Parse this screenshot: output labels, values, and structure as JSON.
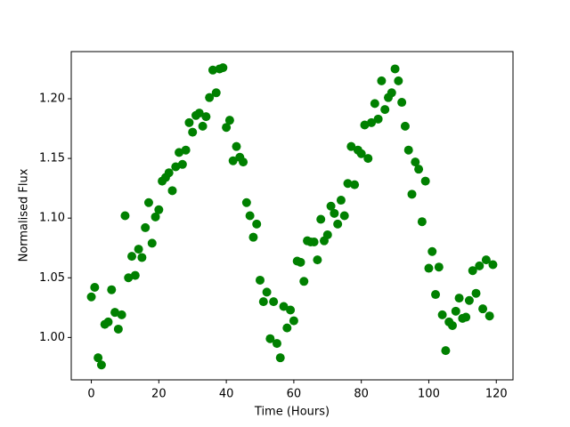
{
  "chart_data": {
    "type": "scatter",
    "xlabel": "Time (Hours)",
    "ylabel": "Normalised Flux",
    "color": "#008000",
    "x": [
      0,
      1,
      2,
      3,
      4,
      5,
      6,
      7,
      8,
      9,
      10,
      11,
      12,
      13,
      14,
      15,
      16,
      17,
      18,
      19,
      20,
      21,
      22,
      23,
      24,
      25,
      26,
      27,
      28,
      29,
      30,
      31,
      32,
      33,
      34,
      35,
      36,
      37,
      38,
      39,
      40,
      41,
      42,
      43,
      44,
      45,
      46,
      47,
      48,
      49,
      50,
      51,
      52,
      53,
      54,
      55,
      56,
      57,
      58,
      59,
      60,
      61,
      62,
      63,
      64,
      65,
      66,
      67,
      68,
      69,
      70,
      71,
      72,
      73,
      74,
      75,
      76,
      77,
      78,
      79,
      80,
      81,
      82,
      83,
      84,
      85,
      86,
      87,
      88,
      89,
      90,
      91,
      92,
      93,
      94,
      95,
      96,
      97,
      98,
      99,
      100,
      101,
      102,
      103,
      104,
      105,
      106,
      107,
      108,
      109,
      110,
      111,
      112,
      113,
      114,
      115,
      116,
      117,
      118,
      119
    ],
    "y": [
      1.034,
      1.042,
      0.983,
      0.977,
      1.011,
      1.013,
      1.04,
      1.021,
      1.007,
      1.019,
      1.102,
      1.05,
      1.068,
      1.052,
      1.074,
      1.067,
      1.092,
      1.113,
      1.079,
      1.101,
      1.107,
      1.131,
      1.134,
      1.138,
      1.123,
      1.143,
      1.155,
      1.145,
      1.157,
      1.18,
      1.172,
      1.186,
      1.188,
      1.177,
      1.185,
      1.201,
      1.224,
      1.205,
      1.225,
      1.226,
      1.176,
      1.182,
      1.148,
      1.16,
      1.151,
      1.147,
      1.113,
      1.102,
      1.084,
      1.095,
      1.048,
      1.03,
      1.038,
      0.999,
      1.03,
      0.995,
      0.983,
      1.026,
      1.008,
      1.023,
      1.014,
      1.064,
      1.063,
      1.047,
      1.081,
      1.08,
      1.08,
      1.065,
      1.099,
      1.081,
      1.086,
      1.11,
      1.104,
      1.095,
      1.115,
      1.102,
      1.129,
      1.16,
      1.128,
      1.157,
      1.154,
      1.178,
      1.15,
      1.18,
      1.196,
      1.183,
      1.215,
      1.191,
      1.201,
      1.205,
      1.225,
      1.215,
      1.197,
      1.177,
      1.157,
      1.12,
      1.147,
      1.141,
      1.097,
      1.131,
      1.058,
      1.072,
      1.036,
      1.059,
      1.019,
      0.989,
      1.013,
      1.01,
      1.022,
      1.033,
      1.016,
      1.017,
      1.031,
      1.056,
      1.037,
      1.06,
      1.024,
      1.065,
      1.018,
      1.061
    ],
    "xlim": [
      -5.95,
      124.95
    ],
    "ylim": [
      0.9645,
      1.2395
    ],
    "xticks": [
      0,
      20,
      40,
      60,
      80,
      100,
      120
    ],
    "yticks": [
      {
        "value": 1,
        "label": "1.00"
      },
      1.05,
      {
        "value": 1.1,
        "label": "1.10"
      },
      1.15,
      {
        "value": 1.2,
        "label": "1.20"
      }
    ]
  }
}
